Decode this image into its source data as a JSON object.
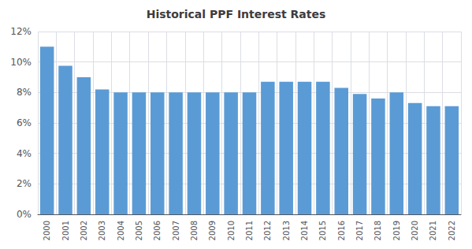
{
  "chart_data": {
    "type": "bar",
    "title": "Historical PPF Interest Rates",
    "categories": [
      "2000",
      "2001",
      "2002",
      "2003",
      "2004",
      "2005",
      "2006",
      "2007",
      "2008",
      "2009",
      "2010",
      "2011",
      "2012",
      "2013",
      "2014",
      "2015",
      "2016",
      "2017",
      "2018",
      "2019",
      "2020",
      "2021",
      "2022"
    ],
    "values": [
      11.0,
      9.75,
      9.0,
      8.2,
      8.0,
      8.0,
      8.0,
      8.0,
      8.0,
      8.0,
      8.0,
      8.0,
      8.7,
      8.7,
      8.7,
      8.7,
      8.3,
      7.9,
      7.6,
      8.0,
      7.3,
      7.1,
      7.1
    ],
    "color": "#5b9bd5",
    "ylim": [
      0,
      12
    ],
    "yticks": [
      {
        "value": 0,
        "label": "0%"
      },
      {
        "value": 2,
        "label": "2%"
      },
      {
        "value": 4,
        "label": "4%"
      },
      {
        "value": 6,
        "label": "6%"
      },
      {
        "value": 8,
        "label": "8%"
      },
      {
        "value": 10,
        "label": "10%"
      },
      {
        "value": 12,
        "label": "12%"
      }
    ],
    "grid": true
  }
}
